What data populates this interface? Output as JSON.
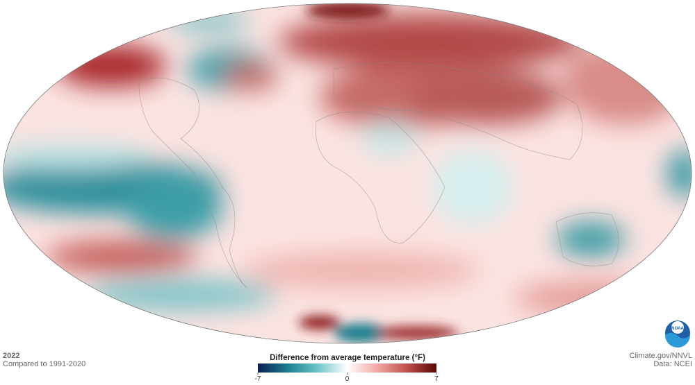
{
  "title": "2022",
  "subtitle": "Compared to 1991-2020",
  "legend": {
    "title": "Difference from average temperature (°F)",
    "lim": [
      -7,
      7
    ],
    "ticks": [
      -7,
      0,
      7
    ],
    "colors": [
      "#0b1d55",
      "#1b7f8f",
      "#6cc4c8",
      "#ffffff",
      "#f2a9a6",
      "#c0504b",
      "#5a0606"
    ]
  },
  "credits": {
    "source": "Climate.gov/NNVL",
    "data": "Data: NCEI"
  },
  "logo": "NOAA"
}
